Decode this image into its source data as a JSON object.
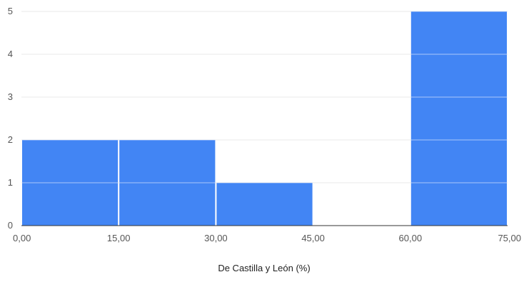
{
  "chart_data": {
    "type": "bar",
    "title": "",
    "xlabel": "De Castilla y León  (%)",
    "ylabel": "",
    "bins": [
      {
        "from": 0,
        "to": 15,
        "count": 2
      },
      {
        "from": 15,
        "to": 30,
        "count": 2
      },
      {
        "from": 30,
        "to": 45,
        "count": 1
      },
      {
        "from": 45,
        "to": 60,
        "count": 0
      },
      {
        "from": 60,
        "to": 75,
        "count": 5
      }
    ],
    "x_ticks": [
      "0,00",
      "15,00",
      "30,00",
      "45,00",
      "60,00",
      "75,00"
    ],
    "y_ticks": [
      "0",
      "1",
      "2",
      "3",
      "4",
      "5"
    ],
    "xlim": [
      0,
      75
    ],
    "ylim": [
      0,
      5
    ],
    "grid": true,
    "legend": "none",
    "colors": {
      "bar": "#4285f4",
      "grid": "#cccccc",
      "axis": "#333333"
    }
  }
}
